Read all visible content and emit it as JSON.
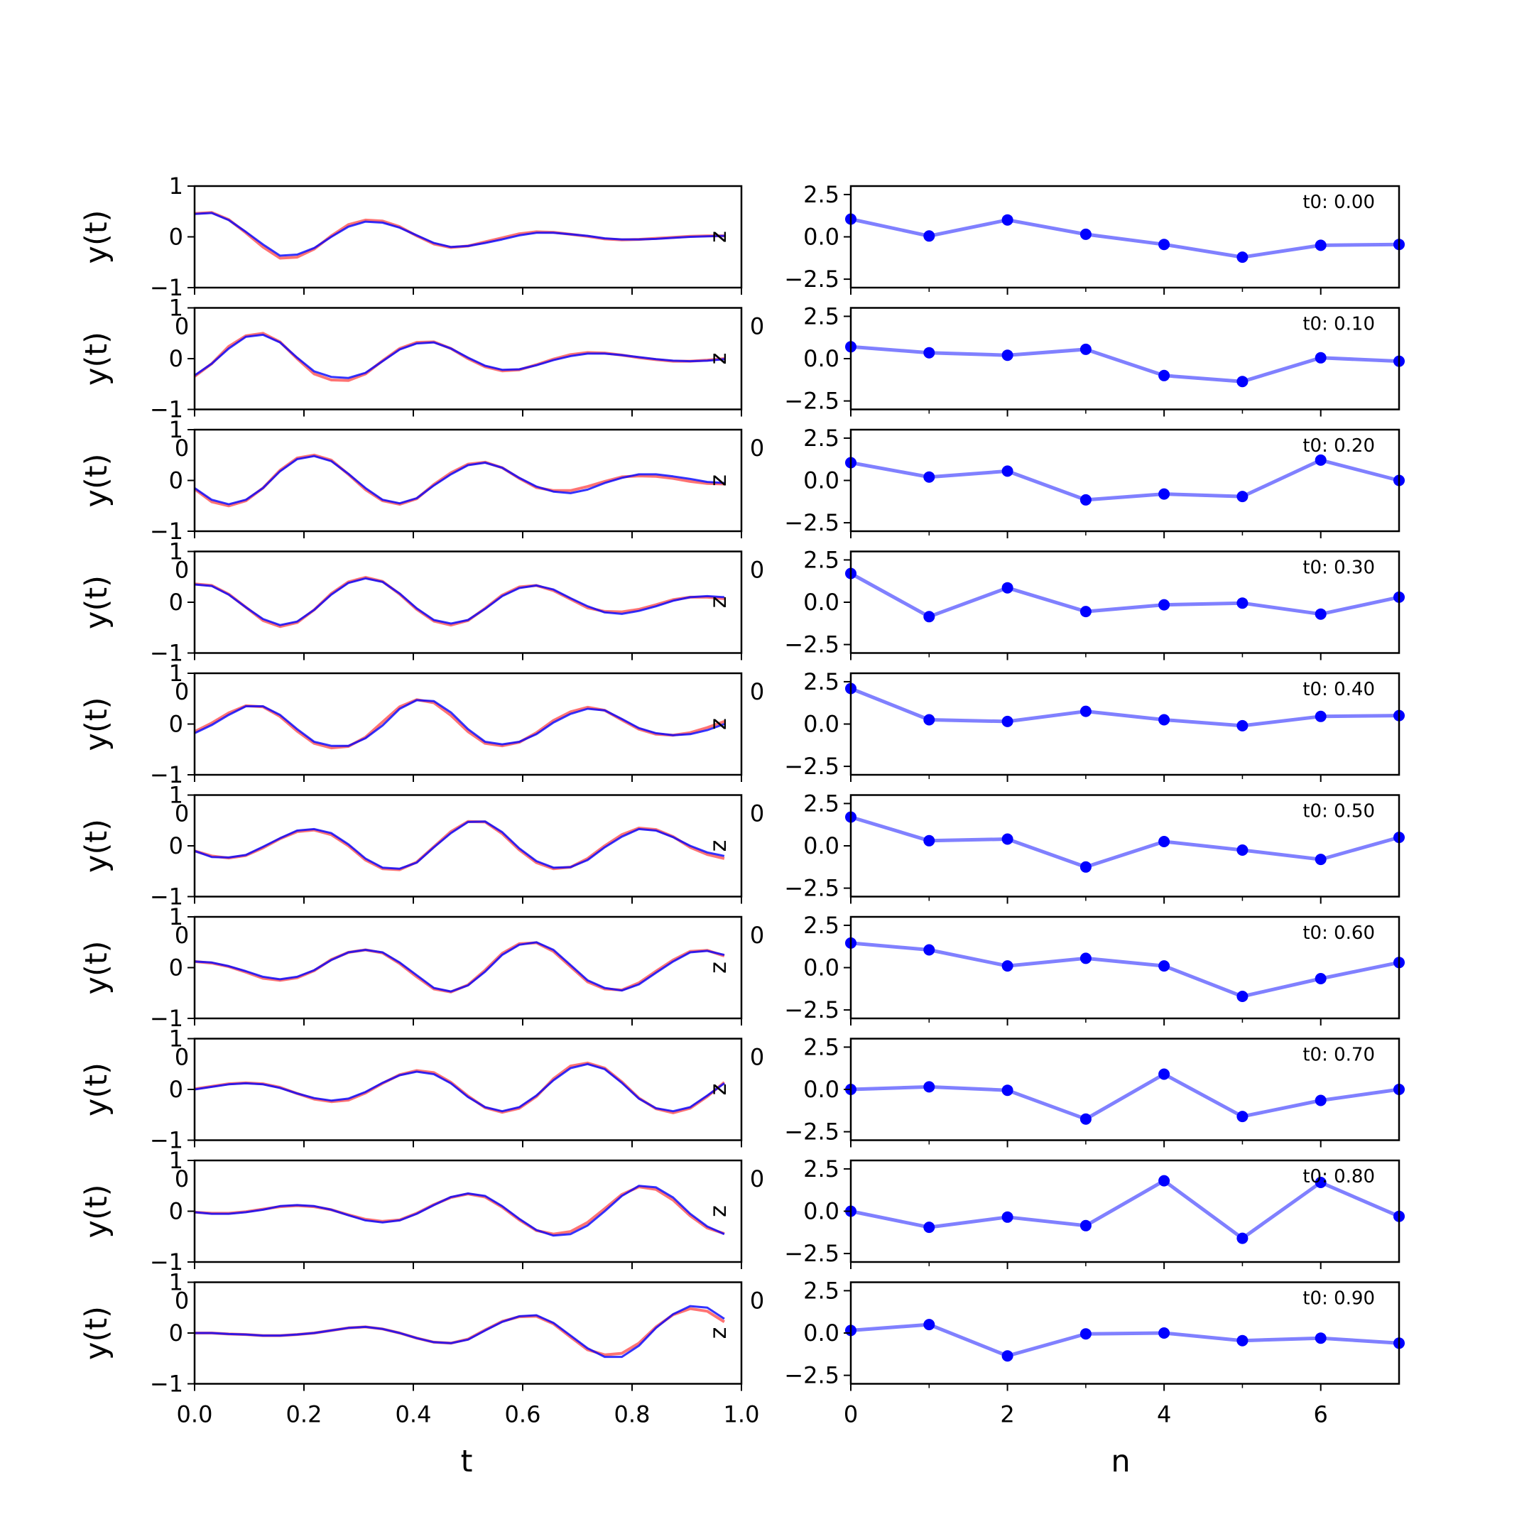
{
  "chart_data": {
    "type": "line",
    "left": {
      "xlabel": "t",
      "ylabel": "y(t)",
      "xlim": [
        0,
        1
      ],
      "ylim": [
        -1,
        1
      ],
      "xticks": [
        0.0,
        0.2,
        0.4,
        0.6,
        0.8,
        1.0
      ],
      "xtick_labels": [
        "0.0",
        "0.2",
        "0.4",
        "0.6",
        "0.8",
        "1.0"
      ],
      "yticks": [
        1,
        0,
        -1
      ],
      "ytick_labels": [
        "1",
        "0",
        "−1"
      ],
      "t": [
        0.0,
        0.03125,
        0.0625,
        0.09375,
        0.125,
        0.15625,
        0.1875,
        0.21875,
        0.25,
        0.28125,
        0.3125,
        0.34375,
        0.375,
        0.40625,
        0.4375,
        0.46875,
        0.5,
        0.53125,
        0.5625,
        0.59375,
        0.625,
        0.65625,
        0.6875,
        0.71875,
        0.75,
        0.78125,
        0.8125,
        0.84375,
        0.875,
        0.90625,
        0.9375,
        0.96875
      ],
      "colors": {
        "blue": "#0000ff",
        "red": "#ff0000",
        "overlap": "#7a1f7a"
      },
      "stray_ylabel": "z",
      "stray_tick": "0",
      "panels": [
        {
          "blue": [
            0.45,
            0.47,
            0.33,
            0.1,
            -0.15,
            -0.37,
            -0.35,
            -0.22,
            0.0,
            0.2,
            0.3,
            0.28,
            0.18,
            0.03,
            -0.12,
            -0.2,
            -0.18,
            -0.12,
            -0.05,
            0.03,
            0.08,
            0.08,
            0.05,
            0.02,
            -0.03,
            -0.05,
            -0.05,
            -0.04,
            -0.02,
            0.0,
            0.01,
            0.02
          ],
          "red": [
            0.46,
            0.48,
            0.34,
            0.08,
            -0.2,
            -0.42,
            -0.4,
            -0.24,
            0.02,
            0.24,
            0.33,
            0.31,
            0.2,
            0.02,
            -0.14,
            -0.21,
            -0.18,
            -0.1,
            -0.02,
            0.06,
            0.1,
            0.09,
            0.05,
            0.01,
            -0.04,
            -0.06,
            -0.05,
            -0.03,
            -0.01,
            0.01,
            0.02,
            0.02
          ]
        },
        {
          "blue": [
            -0.33,
            -0.1,
            0.2,
            0.43,
            0.47,
            0.32,
            0.02,
            -0.25,
            -0.36,
            -0.38,
            -0.28,
            -0.05,
            0.18,
            0.3,
            0.32,
            0.2,
            0.02,
            -0.14,
            -0.22,
            -0.21,
            -0.13,
            -0.03,
            0.05,
            0.1,
            0.1,
            0.07,
            0.03,
            -0.01,
            -0.04,
            -0.05,
            -0.04,
            -0.01
          ],
          "red": [
            -0.35,
            -0.1,
            0.24,
            0.45,
            0.5,
            0.33,
            0.0,
            -0.3,
            -0.42,
            -0.43,
            -0.3,
            -0.04,
            0.2,
            0.32,
            0.33,
            0.2,
            0.0,
            -0.16,
            -0.24,
            -0.22,
            -0.12,
            -0.01,
            0.08,
            0.12,
            0.11,
            0.07,
            0.02,
            -0.02,
            -0.05,
            -0.05,
            -0.03,
            0.0
          ]
        },
        {
          "blue": [
            -0.15,
            -0.38,
            -0.47,
            -0.38,
            -0.15,
            0.18,
            0.42,
            0.48,
            0.38,
            0.13,
            -0.15,
            -0.38,
            -0.45,
            -0.35,
            -0.1,
            0.12,
            0.3,
            0.35,
            0.25,
            0.05,
            -0.12,
            -0.22,
            -0.25,
            -0.18,
            -0.05,
            0.05,
            0.12,
            0.12,
            0.08,
            0.03,
            -0.03,
            -0.05
          ],
          "red": [
            -0.17,
            -0.42,
            -0.5,
            -0.4,
            -0.15,
            0.2,
            0.44,
            0.5,
            0.4,
            0.12,
            -0.18,
            -0.4,
            -0.47,
            -0.36,
            -0.08,
            0.15,
            0.32,
            0.36,
            0.25,
            0.04,
            -0.14,
            -0.2,
            -0.2,
            -0.12,
            -0.02,
            0.07,
            0.09,
            0.08,
            0.04,
            -0.02,
            -0.06,
            -0.07
          ]
        },
        {
          "blue": [
            0.35,
            0.32,
            0.15,
            -0.1,
            -0.33,
            -0.45,
            -0.38,
            -0.15,
            0.15,
            0.38,
            0.47,
            0.4,
            0.17,
            -0.12,
            -0.35,
            -0.42,
            -0.35,
            -0.13,
            0.12,
            0.28,
            0.33,
            0.25,
            0.08,
            -0.08,
            -0.2,
            -0.23,
            -0.17,
            -0.08,
            0.03,
            0.1,
            0.12,
            0.1
          ],
          "red": [
            0.36,
            0.33,
            0.16,
            -0.1,
            -0.36,
            -0.48,
            -0.4,
            -0.15,
            0.17,
            0.4,
            0.49,
            0.41,
            0.16,
            -0.14,
            -0.37,
            -0.45,
            -0.36,
            -0.12,
            0.14,
            0.3,
            0.33,
            0.23,
            0.06,
            -0.11,
            -0.18,
            -0.19,
            -0.14,
            -0.05,
            0.05,
            0.1,
            0.1,
            0.07
          ]
        },
        {
          "blue": [
            -0.18,
            -0.02,
            0.18,
            0.35,
            0.35,
            0.18,
            -0.1,
            -0.35,
            -0.43,
            -0.43,
            -0.28,
            -0.03,
            0.3,
            0.47,
            0.45,
            0.23,
            -0.1,
            -0.35,
            -0.4,
            -0.35,
            -0.2,
            0.03,
            0.2,
            0.3,
            0.27,
            0.1,
            -0.08,
            -0.18,
            -0.22,
            -0.2,
            -0.12,
            0.0
          ],
          "red": [
            -0.15,
            0.02,
            0.22,
            0.36,
            0.34,
            0.15,
            -0.14,
            -0.38,
            -0.47,
            -0.44,
            -0.26,
            0.04,
            0.34,
            0.48,
            0.42,
            0.17,
            -0.15,
            -0.38,
            -0.43,
            -0.36,
            -0.17,
            0.07,
            0.24,
            0.33,
            0.27,
            0.08,
            -0.1,
            -0.2,
            -0.22,
            -0.17,
            -0.07,
            0.05
          ]
        },
        {
          "blue": [
            -0.1,
            -0.22,
            -0.23,
            -0.18,
            -0.02,
            0.15,
            0.3,
            0.33,
            0.25,
            0.03,
            -0.25,
            -0.43,
            -0.45,
            -0.33,
            -0.03,
            0.25,
            0.47,
            0.48,
            0.27,
            -0.05,
            -0.3,
            -0.43,
            -0.42,
            -0.28,
            -0.03,
            0.18,
            0.33,
            0.3,
            0.17,
            0.0,
            -0.13,
            -0.2
          ],
          "red": [
            -0.1,
            -0.2,
            -0.24,
            -0.19,
            -0.04,
            0.14,
            0.28,
            0.31,
            0.22,
            0.0,
            -0.28,
            -0.45,
            -0.47,
            -0.32,
            -0.02,
            0.28,
            0.48,
            0.47,
            0.24,
            -0.08,
            -0.33,
            -0.45,
            -0.42,
            -0.25,
            0.0,
            0.22,
            0.35,
            0.32,
            0.18,
            -0.03,
            -0.17,
            -0.25
          ]
        },
        {
          "blue": [
            0.12,
            0.1,
            0.03,
            -0.07,
            -0.18,
            -0.23,
            -0.18,
            -0.05,
            0.15,
            0.3,
            0.35,
            0.3,
            0.1,
            -0.15,
            -0.4,
            -0.47,
            -0.35,
            -0.08,
            0.25,
            0.45,
            0.5,
            0.35,
            0.05,
            -0.25,
            -0.4,
            -0.45,
            -0.33,
            -0.1,
            0.12,
            0.3,
            0.33,
            0.25
          ],
          "red": [
            0.12,
            0.09,
            0.02,
            -0.09,
            -0.21,
            -0.25,
            -0.2,
            -0.06,
            0.16,
            0.3,
            0.35,
            0.29,
            0.08,
            -0.18,
            -0.42,
            -0.48,
            -0.34,
            -0.05,
            0.28,
            0.47,
            0.49,
            0.32,
            0.02,
            -0.28,
            -0.42,
            -0.44,
            -0.3,
            -0.07,
            0.15,
            0.32,
            0.34,
            0.23
          ]
        },
        {
          "blue": [
            0.0,
            0.05,
            0.1,
            0.12,
            0.1,
            0.03,
            -0.08,
            -0.17,
            -0.22,
            -0.18,
            -0.05,
            0.13,
            0.28,
            0.35,
            0.3,
            0.12,
            -0.15,
            -0.35,
            -0.43,
            -0.35,
            -0.12,
            0.18,
            0.42,
            0.5,
            0.4,
            0.13,
            -0.18,
            -0.37,
            -0.43,
            -0.35,
            -0.12,
            0.12
          ],
          "red": [
            0.01,
            0.06,
            0.11,
            0.13,
            0.11,
            0.04,
            -0.08,
            -0.19,
            -0.24,
            -0.21,
            -0.07,
            0.12,
            0.29,
            0.37,
            0.33,
            0.14,
            -0.13,
            -0.36,
            -0.45,
            -0.37,
            -0.14,
            0.21,
            0.46,
            0.52,
            0.42,
            0.15,
            -0.17,
            -0.38,
            -0.46,
            -0.37,
            -0.14,
            0.14
          ]
        },
        {
          "blue": [
            -0.02,
            -0.05,
            -0.05,
            -0.02,
            0.03,
            0.1,
            0.12,
            0.1,
            0.03,
            -0.08,
            -0.18,
            -0.22,
            -0.18,
            -0.05,
            0.12,
            0.28,
            0.35,
            0.3,
            0.1,
            -0.15,
            -0.37,
            -0.48,
            -0.45,
            -0.28,
            0.0,
            0.3,
            0.5,
            0.47,
            0.27,
            -0.05,
            -0.3,
            -0.45
          ],
          "red": [
            -0.02,
            -0.04,
            -0.04,
            -0.01,
            0.04,
            0.09,
            0.11,
            0.09,
            0.03,
            -0.07,
            -0.16,
            -0.2,
            -0.17,
            -0.04,
            0.13,
            0.27,
            0.34,
            0.28,
            0.08,
            -0.17,
            -0.38,
            -0.45,
            -0.4,
            -0.22,
            0.05,
            0.33,
            0.48,
            0.43,
            0.22,
            -0.09,
            -0.33,
            -0.44
          ]
        },
        {
          "blue": [
            0.0,
            0.0,
            -0.02,
            -0.03,
            -0.05,
            -0.05,
            -0.03,
            0.0,
            0.05,
            0.1,
            0.12,
            0.08,
            0.0,
            -0.1,
            -0.18,
            -0.2,
            -0.13,
            0.05,
            0.22,
            0.33,
            0.35,
            0.2,
            -0.05,
            -0.3,
            -0.47,
            -0.47,
            -0.25,
            0.1,
            0.37,
            0.53,
            0.5,
            0.28
          ],
          "red": [
            0.0,
            0.0,
            -0.02,
            -0.03,
            -0.05,
            -0.05,
            -0.03,
            0.0,
            0.05,
            0.1,
            0.12,
            0.08,
            0.0,
            -0.1,
            -0.18,
            -0.2,
            -0.12,
            0.06,
            0.23,
            0.32,
            0.33,
            0.18,
            -0.08,
            -0.33,
            -0.43,
            -0.4,
            -0.2,
            0.12,
            0.36,
            0.48,
            0.43,
            0.22
          ]
        }
      ]
    },
    "right": {
      "xlabel": "n",
      "xlim": [
        0,
        7
      ],
      "ylim": [
        -3,
        3
      ],
      "xticks": [
        0,
        2,
        4,
        6
      ],
      "xtick_labels": [
        "0",
        "2",
        "4",
        "6"
      ],
      "minor_xticks": [
        1,
        3,
        5
      ],
      "yticks": [
        2.5,
        0.0,
        -2.5
      ],
      "ytick_labels": [
        "2.5",
        "0.0",
        "−2.5"
      ],
      "line_color": "#8080ff",
      "point_color": "#0000ff",
      "stray_tick": "0",
      "n": [
        0,
        1,
        2,
        3,
        4,
        5,
        6,
        7
      ],
      "panels": [
        {
          "label": "t0: 0.00",
          "values": [
            1.05,
            0.05,
            1.0,
            0.15,
            -0.45,
            -1.2,
            -0.5,
            -0.45
          ]
        },
        {
          "label": "t0: 0.10",
          "values": [
            0.7,
            0.35,
            0.2,
            0.55,
            -1.0,
            -1.35,
            0.05,
            -0.15
          ]
        },
        {
          "label": "t0: 0.20",
          "values": [
            1.05,
            0.2,
            0.55,
            -1.15,
            -0.8,
            -0.95,
            1.2,
            0.0
          ]
        },
        {
          "label": "t0: 0.30",
          "values": [
            1.7,
            -0.85,
            0.85,
            -0.55,
            -0.15,
            -0.05,
            -0.7,
            0.3
          ]
        },
        {
          "label": "t0: 0.40",
          "values": [
            2.1,
            0.25,
            0.15,
            0.75,
            0.25,
            -0.1,
            0.45,
            0.5
          ]
        },
        {
          "label": "t0: 0.50",
          "values": [
            1.7,
            0.3,
            0.4,
            -1.25,
            0.25,
            -0.25,
            -0.8,
            0.5
          ]
        },
        {
          "label": "t0: 0.60",
          "values": [
            1.45,
            1.05,
            0.1,
            0.55,
            0.1,
            -1.7,
            -0.65,
            0.3
          ]
        },
        {
          "label": "t0: 0.70",
          "values": [
            0.0,
            0.15,
            -0.05,
            -1.75,
            0.9,
            -1.6,
            -0.65,
            0.0
          ]
        },
        {
          "label": "t0: 0.80",
          "values": [
            0.0,
            -0.95,
            -0.35,
            -0.85,
            1.8,
            -1.6,
            1.7,
            -0.3
          ]
        },
        {
          "label": "t0: 0.90",
          "values": [
            0.15,
            0.5,
            -1.35,
            -0.05,
            0.0,
            -0.45,
            -0.3,
            -0.6
          ]
        }
      ]
    }
  }
}
